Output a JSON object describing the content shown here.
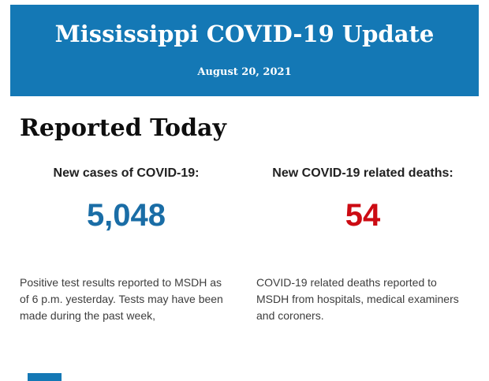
{
  "header": {
    "title": "Mississippi COVID-19 Update",
    "date": "August 20, 2021"
  },
  "report": {
    "heading": "Reported Today",
    "stats": [
      {
        "label": "New cases of COVID-19:",
        "value": "5,048",
        "value_color": "#1a6da6",
        "description": "Positive test results reported to MSDH as of 6 p.m. yesterday. Tests may have been made during the past week,"
      },
      {
        "label": "New COVID-19 related deaths:",
        "value": "54",
        "value_color": "#cc0b13",
        "description": "COVID-19 related deaths reported to MSDH from hospitals, medical examiners and coroners."
      }
    ]
  },
  "colors": {
    "banner_blue": "#1478b5",
    "partial_section_blue": "#1478b5"
  }
}
